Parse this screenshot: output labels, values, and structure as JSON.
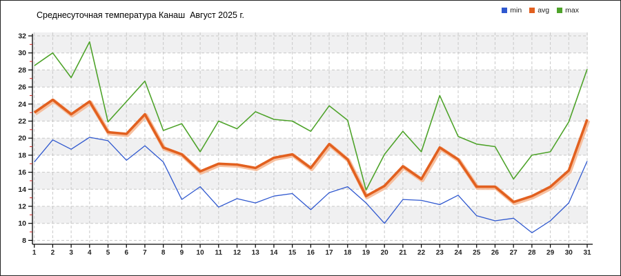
{
  "chart_data": {
    "type": "line",
    "title": "Среднесуточная температура Канаш  Август 2025 г.",
    "xlabel": "",
    "ylabel": "",
    "x": [
      1,
      2,
      3,
      4,
      5,
      6,
      7,
      8,
      9,
      10,
      11,
      12,
      13,
      14,
      15,
      16,
      17,
      18,
      19,
      20,
      21,
      22,
      23,
      24,
      25,
      26,
      27,
      28,
      29,
      30,
      31
    ],
    "series": [
      {
        "name": "min",
        "color": "#2f58cf",
        "line_width": 1.3,
        "values": [
          17.2,
          19.8,
          18.7,
          20.1,
          19.7,
          17.4,
          19.1,
          17.2,
          12.8,
          14.3,
          11.9,
          12.9,
          12.4,
          13.2,
          13.5,
          11.6,
          13.6,
          14.3,
          12.4,
          10.0,
          12.8,
          12.7,
          12.2,
          13.3,
          10.9,
          10.3,
          10.6,
          8.9,
          10.3,
          12.4,
          17.3
        ]
      },
      {
        "name": "avg",
        "color": "#e2601f",
        "line_width": 3.6,
        "values": [
          23.0,
          24.5,
          22.8,
          24.3,
          20.7,
          20.5,
          22.8,
          18.9,
          18.1,
          16.1,
          17.0,
          16.9,
          16.5,
          17.7,
          18.1,
          16.5,
          19.3,
          17.5,
          13.2,
          14.4,
          16.7,
          15.2,
          18.9,
          17.5,
          14.3,
          14.3,
          12.5,
          13.2,
          14.3,
          16.2,
          22.2
        ]
      },
      {
        "name": "max",
        "color": "#4ea32a",
        "line_width": 1.6,
        "values": [
          28.5,
          30.0,
          27.1,
          31.3,
          21.9,
          24.3,
          26.7,
          20.9,
          21.7,
          18.4,
          22.0,
          21.1,
          23.1,
          22.2,
          22.0,
          20.8,
          23.8,
          22.1,
          13.9,
          18.1,
          20.8,
          18.4,
          25.0,
          20.2,
          19.3,
          19.0,
          15.2,
          18.0,
          18.4,
          21.9,
          28.1
        ]
      }
    ],
    "ylim": [
      8,
      32
    ],
    "y_tick_step": 2,
    "y_minor_tick_color": "#cc2020",
    "grid": "dashed",
    "grid_color": "#c8c8c8",
    "band_color": "#f0f0f1",
    "avg_halo_color": "#f6b690",
    "axis_color": "#000000",
    "legend_position": "top-right"
  },
  "legend": {
    "items": [
      {
        "label": "min"
      },
      {
        "label": "avg"
      },
      {
        "label": "max"
      }
    ]
  }
}
